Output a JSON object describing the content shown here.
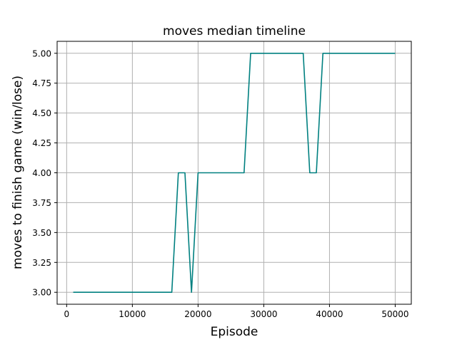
{
  "chart_data": {
    "type": "line",
    "title": "moves median timeline",
    "xlabel": "Episode",
    "ylabel": "moves to finish game (win/lose)",
    "xlim": [
      -1450,
      52450
    ],
    "ylim": [
      2.9,
      5.1
    ],
    "xticks": [
      0,
      10000,
      20000,
      30000,
      40000,
      50000
    ],
    "xtick_labels": [
      "0",
      "10000",
      "20000",
      "30000",
      "40000",
      "50000"
    ],
    "yticks": [
      3.0,
      3.25,
      3.5,
      3.75,
      4.0,
      4.25,
      4.5,
      4.75,
      5.0
    ],
    "ytick_labels": [
      "3.00",
      "3.25",
      "3.50",
      "3.75",
      "4.00",
      "4.25",
      "4.50",
      "4.75",
      "5.00"
    ],
    "grid": true,
    "series": [
      {
        "color": "#008080",
        "x": [
          1000,
          2000,
          3000,
          4000,
          5000,
          6000,
          7000,
          8000,
          9000,
          10000,
          11000,
          12000,
          13000,
          14000,
          15000,
          16000,
          17000,
          18000,
          19000,
          20000,
          21000,
          22000,
          23000,
          24000,
          25000,
          26000,
          27000,
          28000,
          29000,
          30000,
          31000,
          32000,
          33000,
          34000,
          35000,
          36000,
          37000,
          38000,
          39000,
          40000,
          41000,
          42000,
          43000,
          44000,
          45000,
          46000,
          47000,
          48000,
          49000,
          50000
        ],
        "y": [
          3,
          3,
          3,
          3,
          3,
          3,
          3,
          3,
          3,
          3,
          3,
          3,
          3,
          3,
          3,
          3,
          4,
          4,
          3,
          4,
          4,
          4,
          4,
          4,
          4,
          4,
          4,
          5,
          5,
          5,
          5,
          5,
          5,
          5,
          5,
          5,
          4,
          4,
          5,
          5,
          5,
          5,
          5,
          5,
          5,
          5,
          5,
          5,
          5,
          5
        ]
      }
    ]
  }
}
